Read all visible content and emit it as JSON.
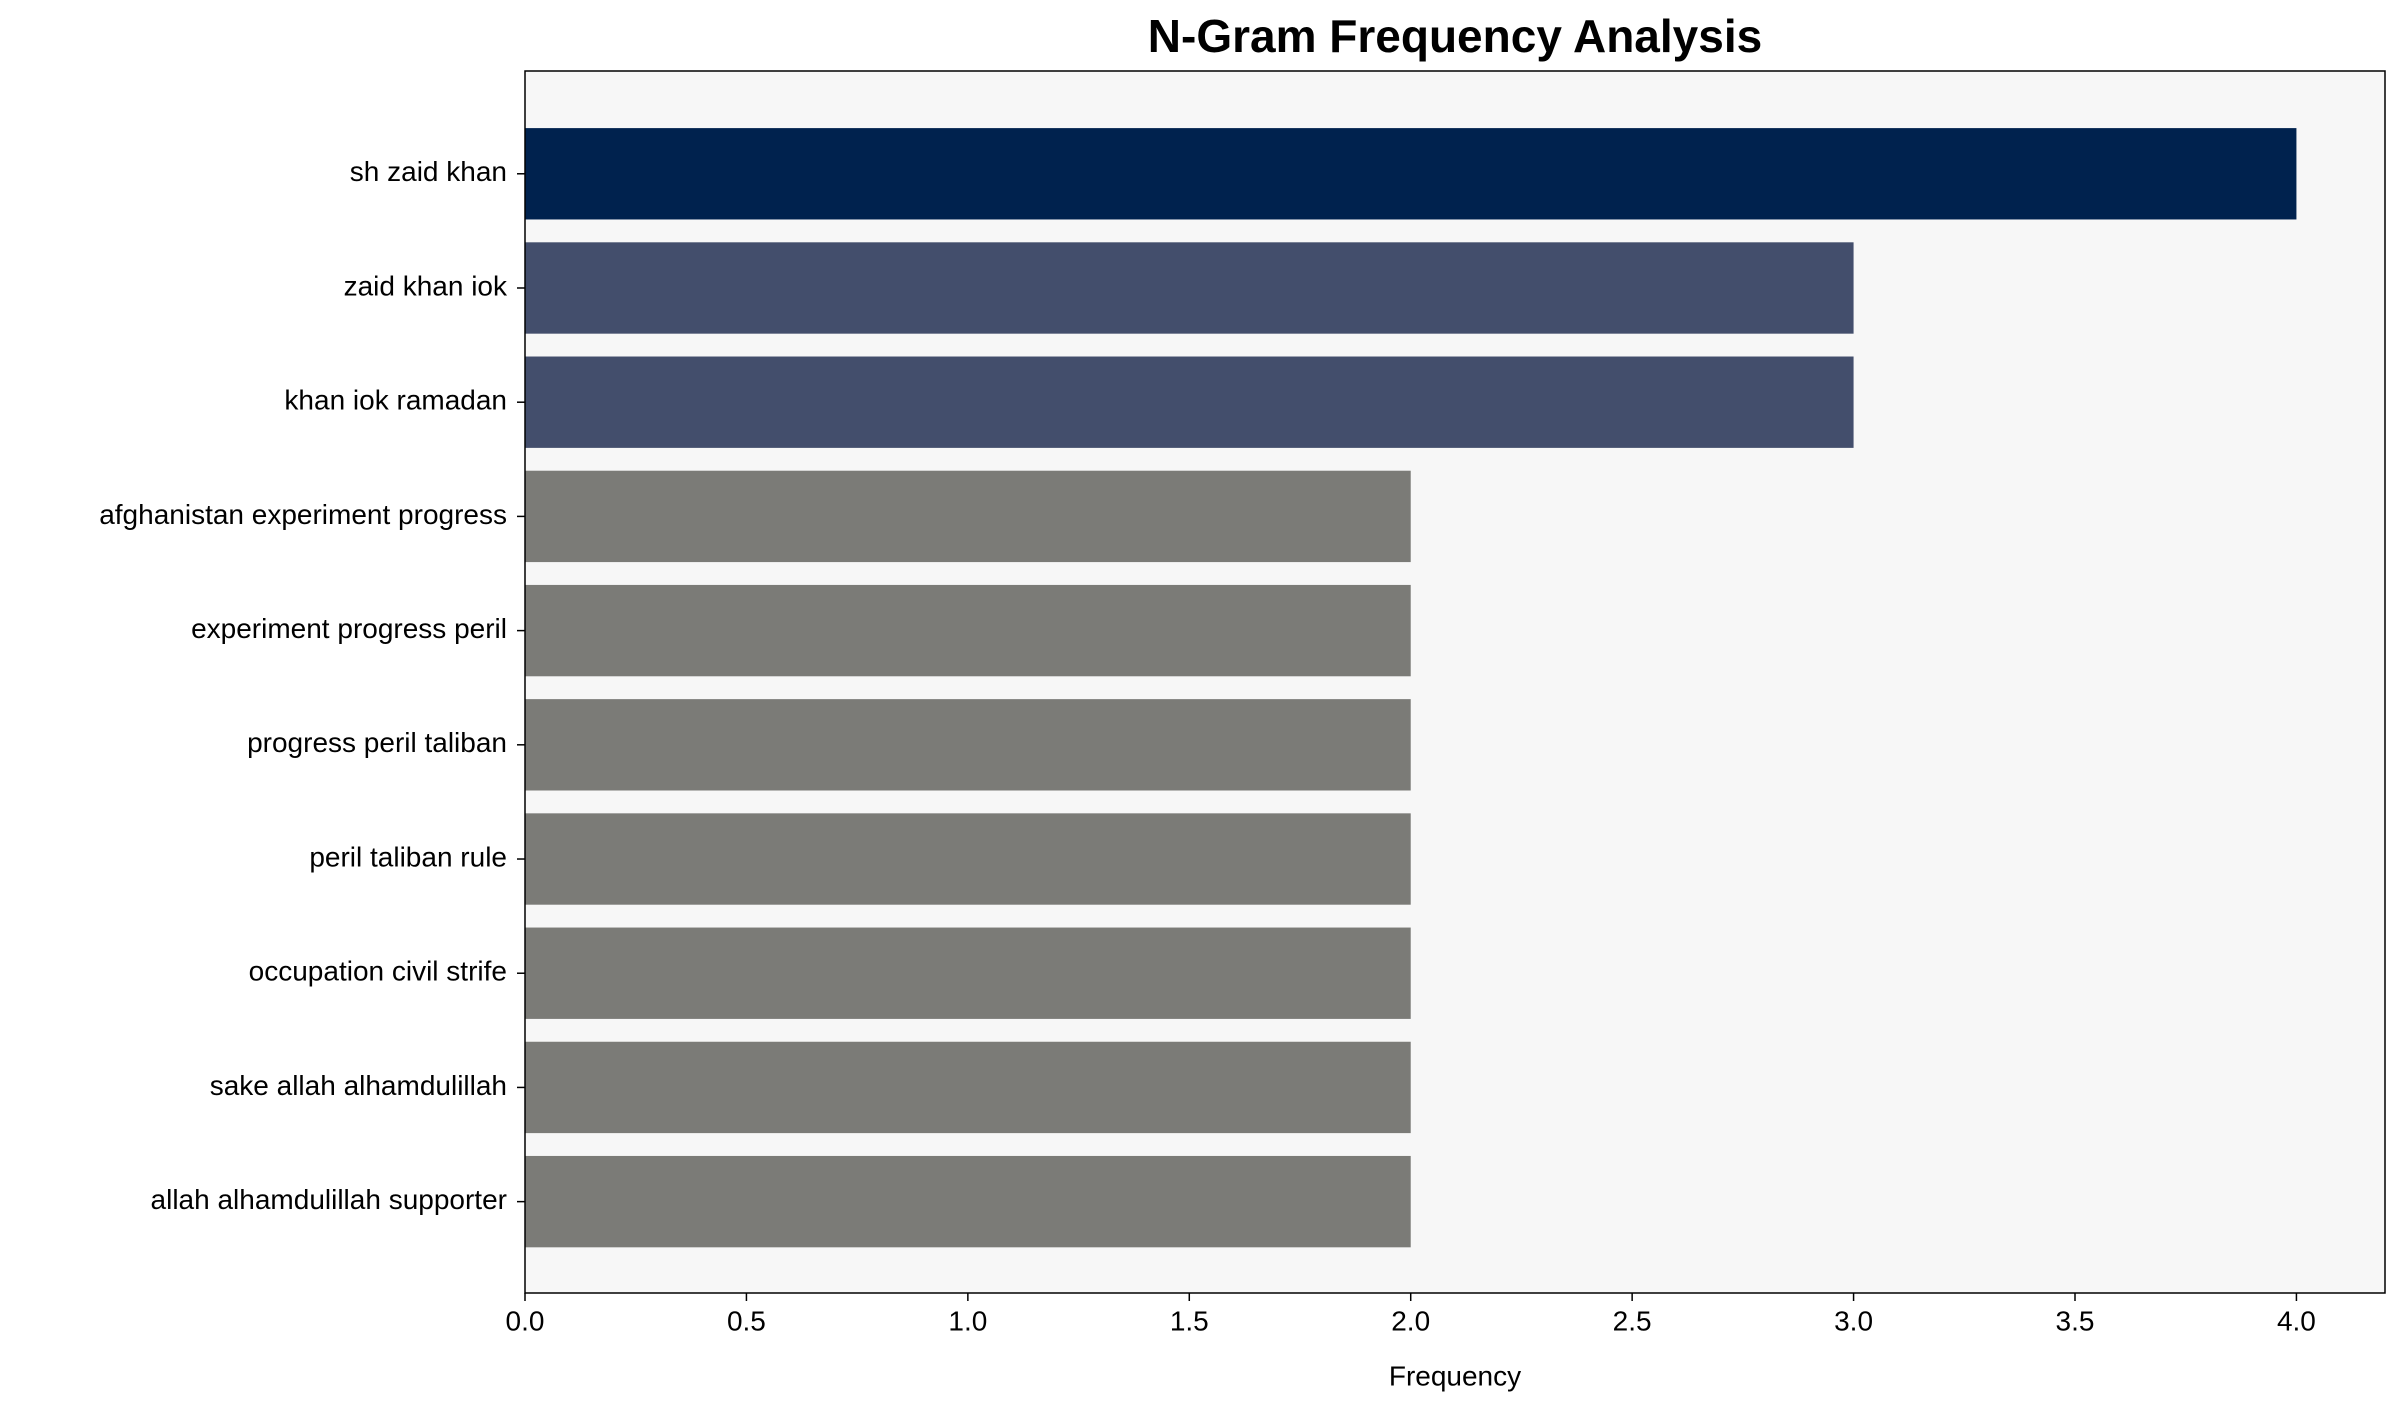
{
  "chart_data": {
    "type": "barh",
    "title": "N-Gram Frequency Analysis",
    "x_label": "Frequency",
    "categories": [
      "sh zaid khan",
      "zaid khan iok",
      "khan iok ramadan",
      "afghanistan experiment progress",
      "experiment progress peril",
      "progress peril taliban",
      "peril taliban rule",
      "occupation civil strife",
      "sake allah alhamdulillah",
      "allah alhamdulillah supporter"
    ],
    "values": [
      4,
      3,
      3,
      2,
      2,
      2,
      2,
      2,
      2,
      2
    ],
    "colors": [
      "#00224e",
      "#434e6c",
      "#434e6c",
      "#7b7b77",
      "#7b7b77",
      "#7b7b77",
      "#7b7b77",
      "#7b7b77",
      "#7b7b77",
      "#7b7b77"
    ],
    "xlim": [
      0,
      4.2
    ],
    "xticks": [
      {
        "value": 0,
        "label": "0.0"
      },
      {
        "value": 0.5,
        "label": "0.5"
      },
      {
        "value": 1,
        "label": "1.0"
      },
      {
        "value": 1.5,
        "label": "1.5"
      },
      {
        "value": 2,
        "label": "2.0"
      },
      {
        "value": 2.5,
        "label": "2.5"
      },
      {
        "value": 3,
        "label": "3.0"
      },
      {
        "value": 3.5,
        "label": "3.5"
      },
      {
        "value": 4,
        "label": "4.0"
      }
    ],
    "grid": false
  }
}
